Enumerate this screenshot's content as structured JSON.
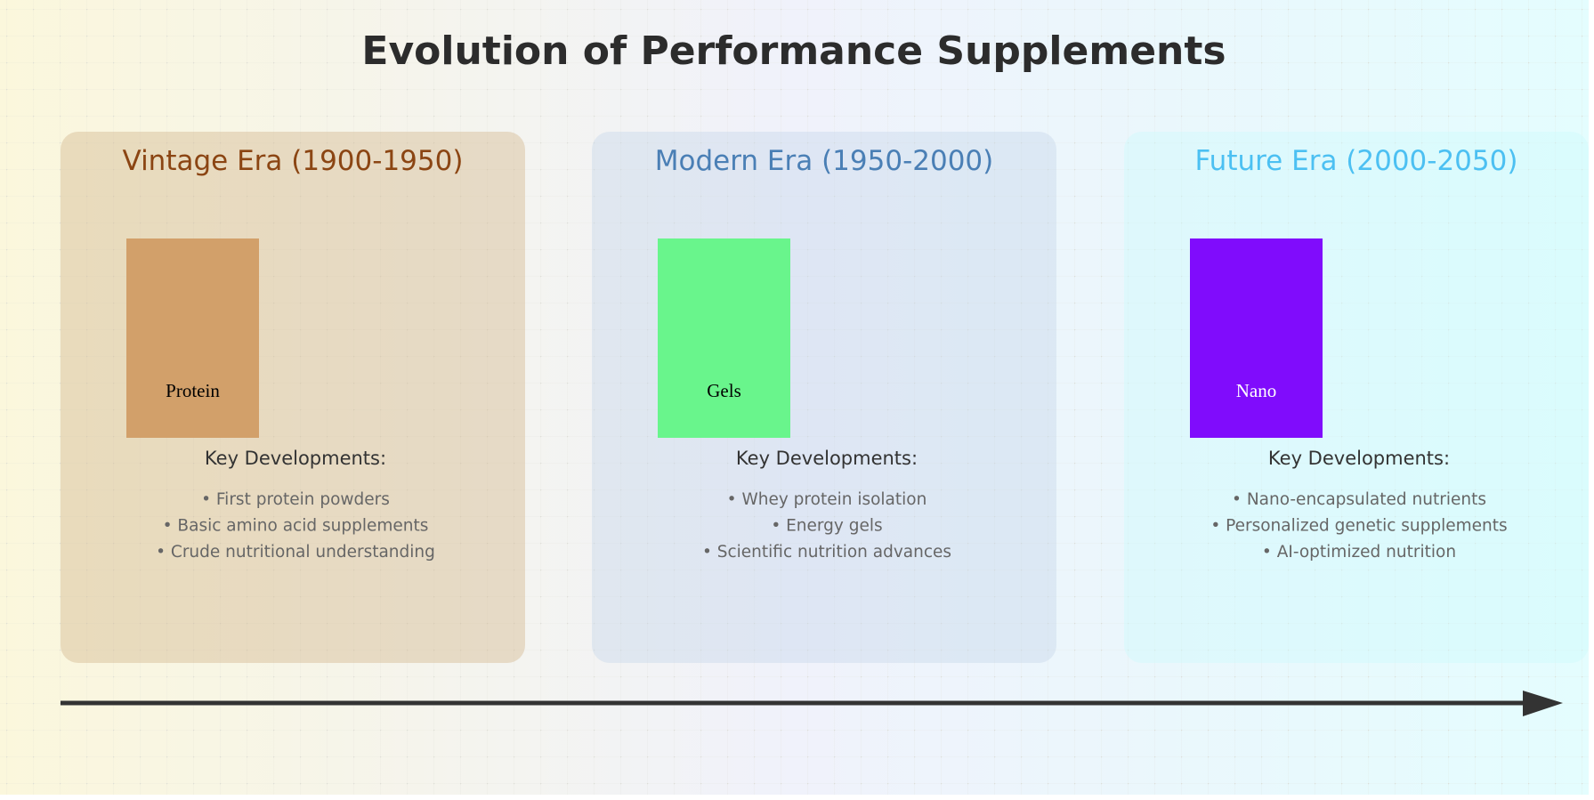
{
  "title": "Evolution of Performance Supplements",
  "background": {
    "gradient": [
      "#fbf7dc",
      "#f0f2fb",
      "#e4fdfe"
    ],
    "grid_color": "#d8d8d0"
  },
  "timeline": {
    "arrow_color": "#333333",
    "direction": "left-to-right"
  },
  "eras": [
    {
      "id": "vintage",
      "title": "Vintage Era (1900-1950)",
      "title_color": "#8b4513",
      "panel_color": "#d2b48c",
      "product": {
        "label": "Protein",
        "color": "#d2a06a",
        "label_color": "#000000"
      },
      "developments_heading": "Key Developments:",
      "developments": [
        "• First protein powders",
        "• Basic amino acid supplements",
        "• Crude nutritional understanding"
      ]
    },
    {
      "id": "modern",
      "title": "Modern Era (1950-2000)",
      "title_color": "#4a7fb5",
      "panel_color": "#c6d6ea",
      "product": {
        "label": "Gels",
        "color": "#69f58c",
        "label_color": "#000000"
      },
      "developments_heading": "Key Developments:",
      "developments": [
        "• Whey protein isolation",
        "• Energy gels",
        "• Scientific nutrition advances"
      ]
    },
    {
      "id": "future",
      "title": "Future Era (2000-2050)",
      "title_color": "#4cc0f2",
      "panel_color": "#ccfbfd",
      "product": {
        "label": "Nano",
        "color": "#800cfc",
        "label_color": "#ffffff"
      },
      "developments_heading": "Key Developments:",
      "developments": [
        "• Nano-encapsulated nutrients",
        "• Personalized genetic supplements",
        "• AI-optimized nutrition"
      ]
    }
  ]
}
